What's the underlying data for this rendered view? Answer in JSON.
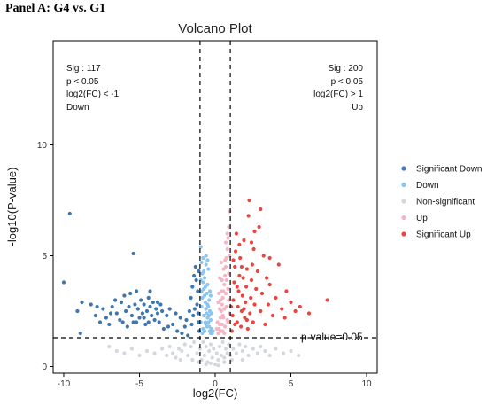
{
  "panel_title": "Panel A: G4 vs. G1",
  "chart_data": {
    "type": "scatter",
    "title": "Volcano Plot",
    "xlabel": "log2(FC)",
    "ylabel": "-log10(P-value)",
    "xlim": [
      -10.7,
      10.7
    ],
    "ylim": [
      -0.3,
      14.7
    ],
    "x_ticks": [
      -10,
      -5,
      0,
      5,
      10
    ],
    "y_ticks": [
      0,
      5,
      10
    ],
    "grid": false,
    "legend_position": "right",
    "colors": {
      "significant_down": "#3e76ad",
      "down": "#8cc6ef",
      "non_significant": "#d3d8de",
      "up": "#f4b5c5",
      "significant_up": "#e8463e"
    },
    "thresholds": {
      "log2fc_low": -1,
      "log2fc_high": 1,
      "p_line": 1.3
    },
    "threshold_label": "p-value=0.05",
    "annotations": {
      "left": [
        "Sig : 117",
        "p < 0.05",
        "log2(FC) < -1",
        "Down"
      ],
      "right": [
        "Sig : 200",
        "p < 0.05",
        "log2(FC) > 1",
        "Up"
      ]
    },
    "legend": [
      {
        "key": "significant_down",
        "label": "Significant Down"
      },
      {
        "key": "down",
        "label": "Down"
      },
      {
        "key": "non_significant",
        "label": "Non-significant"
      },
      {
        "key": "up",
        "label": "Up"
      },
      {
        "key": "significant_up",
        "label": "Significant Up"
      }
    ],
    "series": [
      {
        "name": "Significant Down",
        "key": "significant_down",
        "points": [
          [
            -9.6,
            6.9
          ],
          [
            -10,
            3.8
          ],
          [
            -9.1,
            2.5
          ],
          [
            -8.8,
            2.9
          ],
          [
            -8.9,
            1.5
          ],
          [
            -8.2,
            2.8
          ],
          [
            -7.9,
            2.3
          ],
          [
            -7.6,
            2.0
          ],
          [
            -7.4,
            2.6
          ],
          [
            -7.2,
            2.2
          ],
          [
            -7.0,
            1.9
          ],
          [
            -6.8,
            2.7
          ],
          [
            -6.6,
            3.0
          ],
          [
            -6.5,
            2.4
          ],
          [
            -6.3,
            2.1
          ],
          [
            -6.2,
            2.9
          ],
          [
            -6.0,
            3.2
          ],
          [
            -5.9,
            2.5
          ],
          [
            -5.8,
            1.8
          ],
          [
            -5.7,
            2.7
          ],
          [
            -5.6,
            3.3
          ],
          [
            -5.5,
            2.3
          ],
          [
            -5.4,
            2.0
          ],
          [
            -5.3,
            2.8
          ],
          [
            -5.2,
            3.4
          ],
          [
            -5.1,
            2.6
          ],
          [
            -5.0,
            2.2
          ],
          [
            -4.9,
            3.0
          ],
          [
            -4.8,
            2.4
          ],
          [
            -4.7,
            2.8
          ],
          [
            -4.6,
            1.9
          ],
          [
            -4.5,
            2.5
          ],
          [
            -4.4,
            3.1
          ],
          [
            -4.3,
            2.7
          ],
          [
            -4.2,
            2.3
          ],
          [
            -4.1,
            2.9
          ],
          [
            -4.0,
            2.1
          ],
          [
            -3.9,
            2.6
          ],
          [
            -3.8,
            2.4
          ],
          [
            -3.7,
            2.0
          ],
          [
            -3.6,
            2.8
          ],
          [
            -3.5,
            2.5
          ],
          [
            -3.4,
            1.7
          ],
          [
            -3.2,
            2.3
          ],
          [
            -3.0,
            2.6
          ],
          [
            -2.8,
            1.9
          ],
          [
            -2.6,
            2.4
          ],
          [
            -2.5,
            1.6
          ],
          [
            -5.4,
            5.1
          ],
          [
            -4.3,
            3.4
          ],
          [
            -3.1,
            1.8
          ],
          [
            -2.3,
            2.2
          ],
          [
            -2.2,
            1.5
          ],
          [
            -2.0,
            1.8
          ],
          [
            -1.9,
            2.1
          ],
          [
            -1.8,
            1.4
          ],
          [
            -1.7,
            2.5
          ],
          [
            -1.6,
            3.1
          ],
          [
            -1.5,
            3.6
          ],
          [
            -1.4,
            4.1
          ],
          [
            -1.3,
            4.5
          ],
          [
            -1.2,
            2.8
          ],
          [
            -1.15,
            3.4
          ],
          [
            -1.1,
            2.0
          ],
          [
            -1.05,
            1.6
          ],
          [
            -1.08,
            4.3
          ],
          [
            -1.25,
            3.9
          ],
          [
            -1.35,
            2.6
          ],
          [
            -1.45,
            2.3
          ],
          [
            -1.55,
            1.9
          ],
          [
            -1.12,
            2.4
          ],
          [
            -6.1,
            2.0
          ],
          [
            -6.9,
            2.4
          ],
          [
            -7.8,
            2.7
          ],
          [
            -5.2,
            2.0
          ],
          [
            -4.7,
            2.2
          ],
          [
            -3.8,
            2.9
          ],
          [
            -4.4,
            2.0
          ]
        ]
      },
      {
        "name": "Down",
        "key": "down",
        "points": [
          [
            -0.95,
            5.4
          ],
          [
            -0.9,
            4.7
          ],
          [
            -0.85,
            4.2
          ],
          [
            -0.8,
            3.8
          ],
          [
            -0.75,
            3.5
          ],
          [
            -0.7,
            3.2
          ],
          [
            -0.65,
            2.9
          ],
          [
            -0.6,
            2.6
          ],
          [
            -0.55,
            2.4
          ],
          [
            -0.5,
            2.2
          ],
          [
            -0.45,
            2.0
          ],
          [
            -0.4,
            1.8
          ],
          [
            -0.35,
            1.6
          ],
          [
            -0.3,
            1.5
          ],
          [
            -0.95,
            2.0
          ],
          [
            -0.9,
            2.7
          ],
          [
            -0.85,
            3.1
          ],
          [
            -0.8,
            1.7
          ],
          [
            -0.75,
            2.3
          ],
          [
            -0.7,
            4.0
          ],
          [
            -0.65,
            3.6
          ],
          [
            -0.6,
            1.9
          ],
          [
            -0.55,
            3.3
          ],
          [
            -0.5,
            2.8
          ],
          [
            -0.45,
            4.4
          ],
          [
            -0.4,
            3.0
          ],
          [
            -0.35,
            2.5
          ],
          [
            -0.3,
            2.1
          ],
          [
            -0.25,
            1.7
          ],
          [
            -0.2,
            1.5
          ],
          [
            -0.9,
            3.4
          ],
          [
            -0.8,
            4.9
          ],
          [
            -0.7,
            1.6
          ],
          [
            -0.6,
            4.6
          ],
          [
            -0.5,
            3.7
          ],
          [
            -0.4,
            2.3
          ],
          [
            -0.3,
            3.2
          ],
          [
            -0.95,
            3.9
          ],
          [
            -0.85,
            1.5
          ],
          [
            -0.75,
            4.3
          ],
          [
            -0.65,
            2.0
          ],
          [
            -0.55,
            1.8
          ],
          [
            -0.45,
            2.7
          ],
          [
            -0.35,
            3.4
          ],
          [
            -0.25,
            2.4
          ],
          [
            -0.15,
            1.6
          ],
          [
            -0.6,
            5.0
          ],
          [
            -0.5,
            4.8
          ]
        ]
      },
      {
        "name": "Non-significant",
        "key": "non_significant",
        "points": [
          [
            -6.5,
            0.7
          ],
          [
            -6.0,
            0.6
          ],
          [
            -5.5,
            0.8
          ],
          [
            -5.0,
            0.5
          ],
          [
            -4.5,
            0.7
          ],
          [
            -4.0,
            0.6
          ],
          [
            -3.5,
            0.8
          ],
          [
            -3.2,
            0.5
          ],
          [
            -3.0,
            0.9
          ],
          [
            -2.8,
            0.6
          ],
          [
            -2.6,
            0.4
          ],
          [
            -2.4,
            0.8
          ],
          [
            -2.2,
            0.7
          ],
          [
            -2.0,
            1.0
          ],
          [
            -1.8,
            0.5
          ],
          [
            -1.6,
            0.9
          ],
          [
            -1.4,
            1.1
          ],
          [
            -1.2,
            0.6
          ],
          [
            -1.0,
            0.8
          ],
          [
            -0.9,
            0.3
          ],
          [
            -0.8,
            1.1
          ],
          [
            -0.7,
            0.5
          ],
          [
            -0.6,
            0.9
          ],
          [
            -0.5,
            0.2
          ],
          [
            -0.4,
            0.7
          ],
          [
            -0.3,
            1.0
          ],
          [
            -0.2,
            0.4
          ],
          [
            -0.1,
            0.8
          ],
          [
            0.0,
            0.1
          ],
          [
            0.1,
            0.6
          ],
          [
            0.2,
            0.3
          ],
          [
            0.3,
            0.9
          ],
          [
            0.4,
            0.5
          ],
          [
            0.5,
            1.1
          ],
          [
            0.6,
            0.4
          ],
          [
            0.7,
            0.8
          ],
          [
            0.8,
            0.6
          ],
          [
            0.9,
            1.0
          ],
          [
            1.0,
            0.5
          ],
          [
            1.2,
            0.8
          ],
          [
            1.4,
            0.6
          ],
          [
            1.6,
            1.0
          ],
          [
            1.8,
            0.7
          ],
          [
            2.0,
            0.9
          ],
          [
            2.2,
            0.5
          ],
          [
            2.5,
            0.8
          ],
          [
            2.8,
            0.6
          ],
          [
            3.0,
            0.9
          ],
          [
            3.3,
            0.7
          ],
          [
            3.6,
            0.5
          ],
          [
            4.0,
            0.8
          ],
          [
            4.5,
            0.6
          ],
          [
            5.0,
            0.7
          ],
          [
            5.5,
            0.5
          ],
          [
            -7.0,
            0.9
          ],
          [
            -1.1,
            0.2
          ],
          [
            -0.6,
            0.1
          ],
          [
            0.2,
            0.05
          ],
          [
            0.6,
            0.2
          ],
          [
            -0.3,
            0.15
          ],
          [
            1.1,
            0.3
          ],
          [
            -1.5,
            0.3
          ],
          [
            1.8,
            0.3
          ],
          [
            -2.3,
            0.3
          ]
        ]
      },
      {
        "name": "Up",
        "key": "up",
        "points": [
          [
            0.95,
            7.0
          ],
          [
            0.9,
            6.3
          ],
          [
            0.85,
            5.8
          ],
          [
            0.8,
            5.3
          ],
          [
            0.75,
            4.9
          ],
          [
            0.7,
            4.5
          ],
          [
            0.65,
            4.1
          ],
          [
            0.6,
            3.7
          ],
          [
            0.55,
            3.4
          ],
          [
            0.5,
            3.1
          ],
          [
            0.45,
            2.8
          ],
          [
            0.4,
            2.5
          ],
          [
            0.35,
            2.2
          ],
          [
            0.3,
            1.9
          ],
          [
            0.25,
            1.7
          ],
          [
            0.2,
            1.5
          ],
          [
            0.95,
            2.4
          ],
          [
            0.9,
            3.0
          ],
          [
            0.85,
            3.5
          ],
          [
            0.8,
            2.1
          ],
          [
            0.75,
            2.7
          ],
          [
            0.7,
            3.3
          ],
          [
            0.65,
            1.8
          ],
          [
            0.6,
            2.6
          ],
          [
            0.55,
            4.4
          ],
          [
            0.5,
            1.6
          ],
          [
            0.45,
            3.9
          ],
          [
            0.4,
            4.7
          ],
          [
            0.35,
            3.0
          ],
          [
            0.3,
            2.6
          ],
          [
            0.25,
            3.3
          ],
          [
            0.15,
            2.0
          ],
          [
            0.9,
            4.2
          ],
          [
            0.8,
            6.0
          ],
          [
            0.7,
            5.6
          ],
          [
            0.6,
            1.5
          ],
          [
            0.5,
            2.3
          ],
          [
            0.4,
            3.4
          ],
          [
            0.3,
            4.0
          ],
          [
            0.2,
            2.9
          ],
          [
            0.95,
            5.0
          ],
          [
            0.85,
            2.0
          ],
          [
            0.75,
            3.9
          ],
          [
            0.65,
            4.8
          ],
          [
            0.55,
            2.2
          ],
          [
            0.45,
            1.9
          ],
          [
            0.35,
            1.6
          ],
          [
            0.1,
            1.7
          ]
        ]
      },
      {
        "name": "Significant Up",
        "key": "significant_up",
        "points": [
          [
            1.1,
            1.6
          ],
          [
            1.15,
            2.3
          ],
          [
            1.2,
            3.0
          ],
          [
            1.25,
            3.8
          ],
          [
            1.3,
            4.5
          ],
          [
            1.35,
            5.2
          ],
          [
            1.4,
            6.0
          ],
          [
            1.45,
            2.0
          ],
          [
            1.5,
            2.7
          ],
          [
            1.55,
            3.4
          ],
          [
            1.6,
            4.1
          ],
          [
            1.65,
            4.9
          ],
          [
            1.7,
            1.8
          ],
          [
            1.75,
            2.5
          ],
          [
            1.8,
            3.2
          ],
          [
            1.85,
            4.0
          ],
          [
            1.9,
            5.7
          ],
          [
            1.95,
            2.2
          ],
          [
            2.0,
            2.9
          ],
          [
            2.05,
            3.6
          ],
          [
            2.1,
            4.4
          ],
          [
            2.15,
            1.7
          ],
          [
            2.2,
            6.8
          ],
          [
            2.25,
            7.5
          ],
          [
            2.3,
            2.4
          ],
          [
            2.35,
            3.1
          ],
          [
            2.4,
            3.9
          ],
          [
            2.45,
            4.6
          ],
          [
            2.5,
            2.0
          ],
          [
            2.55,
            5.3
          ],
          [
            2.6,
            2.8
          ],
          [
            2.7,
            3.5
          ],
          [
            2.8,
            4.3
          ],
          [
            2.9,
            6.3
          ],
          [
            3.0,
            2.5
          ],
          [
            3.1,
            3.3
          ],
          [
            3.2,
            5.0
          ],
          [
            3.3,
            1.9
          ],
          [
            3.4,
            4.0
          ],
          [
            3.5,
            2.8
          ],
          [
            3.6,
            3.7
          ],
          [
            3.8,
            2.3
          ],
          [
            4.0,
            3.1
          ],
          [
            4.2,
            4.6
          ],
          [
            4.4,
            2.6
          ],
          [
            4.7,
            3.4
          ],
          [
            5.0,
            2.9
          ],
          [
            5.3,
            2.5
          ],
          [
            5.6,
            2.7
          ],
          [
            6.2,
            2.4
          ],
          [
            7.4,
            3.0
          ],
          [
            3.0,
            7.1
          ],
          [
            2.6,
            6.1
          ],
          [
            1.6,
            5.5
          ],
          [
            1.2,
            4.8
          ],
          [
            1.05,
            2.7
          ],
          [
            1.3,
            1.9
          ],
          [
            1.9,
            2.6
          ],
          [
            2.1,
            2.1
          ],
          [
            1.45,
            3.6
          ],
          [
            1.75,
            4.5
          ],
          [
            2.4,
            5.6
          ],
          [
            3.6,
            4.9
          ],
          [
            4.6,
            2.2
          ]
        ]
      }
    ]
  }
}
